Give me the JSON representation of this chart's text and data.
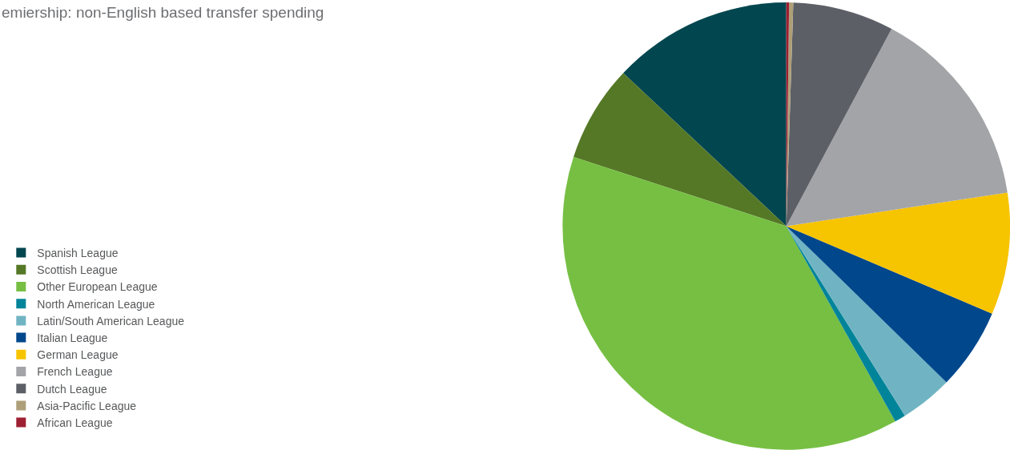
{
  "chart_data": {
    "type": "pie",
    "title": "emiership: non-English based transfer spending",
    "categories": [
      "Spanish League",
      "Scottish League",
      "Other European League",
      "North American League",
      "Latin/South American League",
      "Italian League",
      "German League",
      "French League",
      "Dutch League",
      "Asia-Pacific League",
      "African League"
    ],
    "values": [
      13.0,
      7.0,
      38.1,
      0.8,
      3.8,
      5.9,
      8.8,
      14.8,
      7.3,
      0.3,
      0.2
    ],
    "colors": [
      "#02464f",
      "#557826",
      "#76bf43",
      "#00849a",
      "#70b4c3",
      "#00478c",
      "#f7c400",
      "#a3a4a8",
      "#5c5f66",
      "#ae9f79",
      "#9e1f32"
    ],
    "legend": "left"
  }
}
